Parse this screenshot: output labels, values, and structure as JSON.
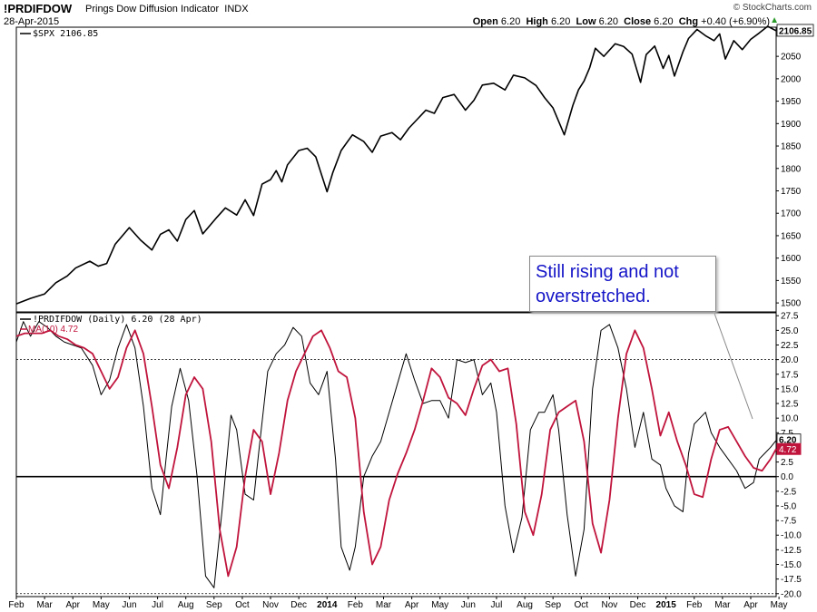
{
  "header": {
    "ticker": "!PRDIFDOW",
    "name": "Prings Dow Diffusion Indicator",
    "exchange": "INDX",
    "date": "28-Apr-2015",
    "brand": "© StockCharts.com",
    "quote": {
      "open_label": "Open",
      "open": "6.20",
      "high_label": "High",
      "high": "6.20",
      "low_label": "Low",
      "low": "6.20",
      "close_label": "Close",
      "close": "6.20",
      "chg_label": "Chg",
      "chg": "+0.40 (+6.90%)"
    }
  },
  "annotation": "Still rising and not overstretched.",
  "colors": {
    "price": "#000000",
    "indicator": "#000000",
    "ma": "#c0143c",
    "annotation": "#1515c8",
    "up": "#2a9a2a"
  },
  "chart_data": [
    {
      "type": "line",
      "legend": [
        "$SPX 2106.85"
      ],
      "last_value_label": "2106.85",
      "y_ticks": [
        1500,
        1550,
        1600,
        1650,
        1700,
        1750,
        1800,
        1850,
        1900,
        1950,
        2000,
        2050
      ],
      "ylim": [
        1480,
        2115
      ],
      "series": [
        {
          "name": "$SPX",
          "x": [
            0.0,
            0.5,
            1.0,
            1.4,
            1.8,
            2.1,
            2.6,
            2.9,
            3.2,
            3.5,
            4.0,
            4.4,
            4.8,
            5.1,
            5.4,
            5.7,
            6.0,
            6.3,
            6.6,
            7.1,
            7.4,
            7.8,
            8.1,
            8.4,
            8.7,
            9.0,
            9.2,
            9.4,
            9.6,
            10.0,
            10.3,
            10.6,
            11.0,
            11.2,
            11.5,
            11.9,
            12.3,
            12.6,
            12.9,
            13.3,
            13.6,
            13.9,
            14.2,
            14.5,
            14.8,
            15.1,
            15.5,
            15.9,
            16.2,
            16.5,
            16.9,
            17.3,
            17.6,
            18.0,
            18.4,
            18.7,
            19.0,
            19.4,
            19.7,
            19.9,
            20.1,
            20.3,
            20.5,
            20.8,
            21.2,
            21.5,
            21.8,
            22.1,
            22.3,
            22.6,
            22.9,
            23.1,
            23.3,
            23.6,
            23.8,
            24.1,
            24.4,
            24.7,
            24.9,
            25.1,
            25.4,
            25.7,
            26.0,
            26.3,
            26.6,
            26.9
          ],
          "values": [
            1498,
            1510,
            1520,
            1545,
            1560,
            1578,
            1593,
            1582,
            1588,
            1631,
            1668,
            1640,
            1618,
            1653,
            1663,
            1638,
            1686,
            1706,
            1654,
            1691,
            1712,
            1696,
            1730,
            1695,
            1765,
            1775,
            1795,
            1770,
            1808,
            1840,
            1845,
            1826,
            1748,
            1790,
            1840,
            1875,
            1860,
            1836,
            1872,
            1880,
            1864,
            1890,
            1910,
            1930,
            1923,
            1958,
            1965,
            1930,
            1952,
            1986,
            1990,
            1975,
            2008,
            2002,
            1985,
            1958,
            1935,
            1875,
            1940,
            1975,
            1995,
            2025,
            2068,
            2050,
            2078,
            2072,
            2055,
            1992,
            2054,
            2073,
            2023,
            2052,
            2006,
            2060,
            2090,
            2110,
            2096,
            2085,
            2100,
            2044,
            2085,
            2065,
            2088,
            2102,
            2117,
            2107
          ]
        }
      ]
    },
    {
      "type": "line",
      "legend": [
        "!PRDIFDOW (Daily) 6.20 (28 Apr)",
        "MA(10) 4.72"
      ],
      "last_value_labels": [
        "6.20",
        "4.72"
      ],
      "y_ticks": [
        -20.0,
        -17.5,
        -15.0,
        -12.5,
        -10.0,
        -7.5,
        -5.0,
        -2.5,
        0.0,
        2.5,
        5.0,
        7.5,
        10.0,
        12.5,
        15.0,
        17.5,
        20.0,
        22.5,
        25.0,
        27.5
      ],
      "ylim": [
        -20.5,
        28.0
      ],
      "reference_lines": [
        20.0,
        0.0,
        -20.0
      ],
      "x_ticks": [
        "Feb",
        "Mar",
        "Apr",
        "May",
        "Jun",
        "Jul",
        "Aug",
        "Sep",
        "Oct",
        "Nov",
        "Dec",
        "2014",
        "Feb",
        "Mar",
        "Apr",
        "May",
        "Jun",
        "Jul",
        "Aug",
        "Sep",
        "Oct",
        "Nov",
        "Dec",
        "2015",
        "Feb",
        "Mar",
        "Apr",
        "May"
      ],
      "series": [
        {
          "name": "!PRDIFDOW",
          "x": [
            0.0,
            0.25,
            0.5,
            0.8,
            1.1,
            1.4,
            1.7,
            2.0,
            2.3,
            2.7,
            3.0,
            3.3,
            3.6,
            3.9,
            4.2,
            4.5,
            4.8,
            5.1,
            5.3,
            5.5,
            5.8,
            6.1,
            6.4,
            6.7,
            7.0,
            7.3,
            7.6,
            7.8,
            8.1,
            8.4,
            8.6,
            8.9,
            9.2,
            9.5,
            9.8,
            10.1,
            10.4,
            10.7,
            11.0,
            11.3,
            11.5,
            11.8,
            12.0,
            12.3,
            12.6,
            12.9,
            13.2,
            13.5,
            13.8,
            14.1,
            14.4,
            14.7,
            15.0,
            15.3,
            15.6,
            15.9,
            16.2,
            16.5,
            16.8,
            17.0,
            17.3,
            17.6,
            17.9,
            18.2,
            18.5,
            18.7,
            19.0,
            19.2,
            19.5,
            19.8,
            20.1,
            20.4,
            20.7,
            21.0,
            21.3,
            21.6,
            21.9,
            22.2,
            22.5,
            22.8,
            23.0,
            23.3,
            23.6,
            23.8,
            24.0,
            24.2,
            24.4,
            24.6,
            24.9,
            25.2,
            25.5,
            25.8,
            26.1,
            26.3,
            26.5,
            26.7,
            26.9
          ],
          "values": [
            23.0,
            26.5,
            24.0,
            26.5,
            25.5,
            24.0,
            23.0,
            22.5,
            22.0,
            19.0,
            14.0,
            16.5,
            22.0,
            26.0,
            22.0,
            12.0,
            -2.0,
            -6.5,
            3.0,
            12.0,
            18.5,
            13.0,
            0.0,
            -17.0,
            -19.0,
            -5.0,
            10.5,
            8.0,
            -3.0,
            -4.0,
            5.0,
            18.0,
            21.0,
            22.5,
            25.5,
            24.0,
            16.0,
            14.0,
            18.0,
            3.0,
            -12.0,
            -16.0,
            -12.0,
            0.0,
            3.5,
            6.0,
            11.0,
            16.0,
            21.0,
            16.5,
            12.5,
            13.0,
            13.0,
            10.0,
            20.0,
            19.5,
            20.0,
            14.0,
            16.0,
            11.0,
            -5.0,
            -13.0,
            -7.0,
            8.0,
            11.0,
            11.0,
            14.0,
            8.0,
            -6.5,
            -17.0,
            -9.0,
            15.0,
            25.0,
            26.0,
            22.0,
            15.0,
            5.0,
            11.0,
            3.0,
            2.0,
            -2.0,
            -5.0,
            -6.0,
            4.0,
            9.0,
            10.0,
            11.0,
            7.5,
            5.0,
            3.0,
            1.0,
            -2.0,
            -1.0,
            3.0,
            4.0,
            5.0,
            6.2
          ]
        },
        {
          "name": "MA(10)",
          "x": [
            0.0,
            0.3,
            0.6,
            0.9,
            1.2,
            1.5,
            1.8,
            2.1,
            2.4,
            2.7,
            3.0,
            3.3,
            3.6,
            3.9,
            4.2,
            4.5,
            4.8,
            5.1,
            5.4,
            5.7,
            6.0,
            6.3,
            6.6,
            6.9,
            7.2,
            7.5,
            7.8,
            8.1,
            8.4,
            8.7,
            9.0,
            9.3,
            9.6,
            9.9,
            10.2,
            10.5,
            10.8,
            11.1,
            11.4,
            11.7,
            12.0,
            12.3,
            12.6,
            12.9,
            13.2,
            13.5,
            13.8,
            14.1,
            14.4,
            14.7,
            15.0,
            15.3,
            15.6,
            15.9,
            16.2,
            16.5,
            16.8,
            17.1,
            17.4,
            17.7,
            18.0,
            18.3,
            18.6,
            18.9,
            19.2,
            19.5,
            19.8,
            20.1,
            20.4,
            20.7,
            21.0,
            21.3,
            21.6,
            21.9,
            22.2,
            22.5,
            22.8,
            23.1,
            23.4,
            23.7,
            24.0,
            24.3,
            24.6,
            24.9,
            25.2,
            25.5,
            25.8,
            26.1,
            26.4,
            26.7,
            26.9
          ],
          "values": [
            24.0,
            24.5,
            24.5,
            24.5,
            25.0,
            24.0,
            23.5,
            22.5,
            22.0,
            21.0,
            18.0,
            15.0,
            17.0,
            22.0,
            25.0,
            21.0,
            12.0,
            2.0,
            -2.0,
            5.0,
            14.0,
            17.0,
            15.0,
            6.0,
            -9.0,
            -17.0,
            -12.0,
            0.0,
            8.0,
            6.0,
            -3.0,
            4.0,
            13.0,
            18.0,
            21.0,
            24.0,
            25.0,
            22.0,
            18.0,
            17.0,
            10.0,
            -6.0,
            -15.0,
            -12.0,
            -4.0,
            0.5,
            4.0,
            8.0,
            13.0,
            18.5,
            17.0,
            13.5,
            12.5,
            10.5,
            15.0,
            19.0,
            20.0,
            18.0,
            18.5,
            9.0,
            -6.0,
            -10.0,
            -3.0,
            8.0,
            11.0,
            12.0,
            13.0,
            6.0,
            -8.0,
            -13.0,
            -4.0,
            10.0,
            21.0,
            25.0,
            22.0,
            15.0,
            7.0,
            11.0,
            6.0,
            2.0,
            -3.0,
            -3.5,
            3.0,
            8.0,
            8.5,
            6.0,
            3.5,
            1.5,
            1.0,
            3.0,
            4.72
          ]
        }
      ]
    }
  ]
}
